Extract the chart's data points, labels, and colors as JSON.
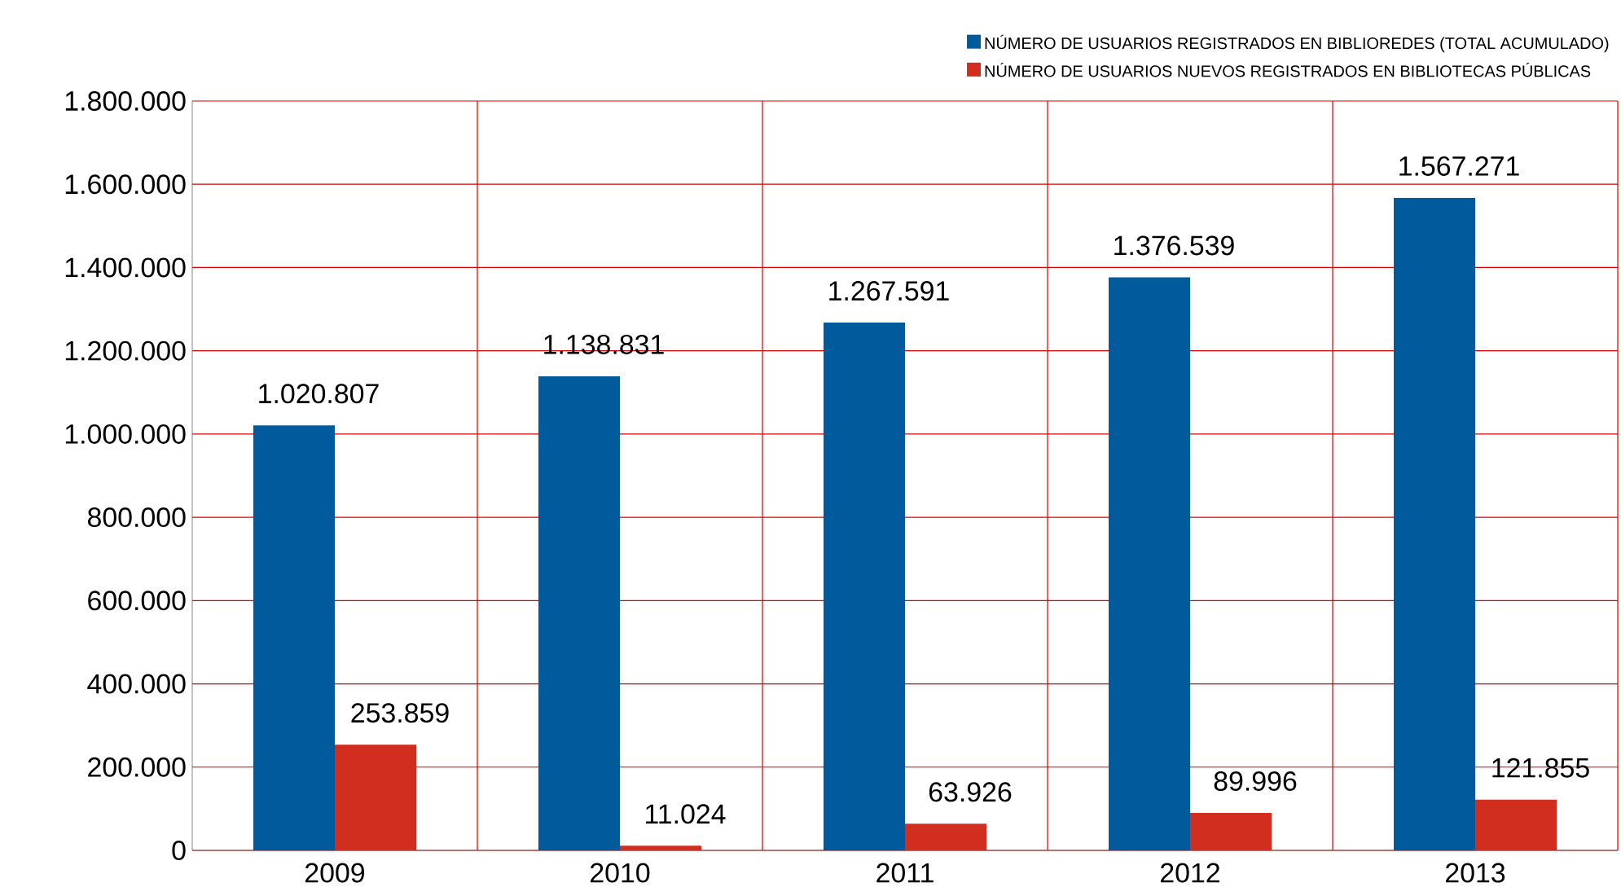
{
  "chart_data": {
    "type": "bar",
    "categories": [
      "2009",
      "2010",
      "2011",
      "2012",
      "2013"
    ],
    "series": [
      {
        "name": "NÚMERO DE USUARIOS REGISTRADOS EN BIBLIOREDES (TOTAL ACUMULADO)",
        "color": "#005a9c",
        "values": [
          1020807,
          1138831,
          1267591,
          1376539,
          1567271
        ],
        "value_labels": [
          "1.020.807",
          "1.138.831",
          "1.267.591",
          "1.376.539",
          "1.567.271"
        ]
      },
      {
        "name": "NÚMERO DE USUARIOS NUEVOS REGISTRADOS EN BIBLIOTECAS PÚBLICAS",
        "color": "#d12e1f",
        "values": [
          253859,
          11024,
          63926,
          89996,
          121855
        ],
        "value_labels": [
          "253.859",
          "11.024",
          "63.926",
          "89.996",
          "121.855"
        ]
      }
    ],
    "ylim": [
      0,
      1800000
    ],
    "yticks": [
      {
        "value": 0,
        "label": "0"
      },
      {
        "value": 200000,
        "label": "200.000"
      },
      {
        "value": 400000,
        "label": "400.000"
      },
      {
        "value": 600000,
        "label": "600.000"
      },
      {
        "value": 800000,
        "label": "800.000"
      },
      {
        "value": 1000000,
        "label": "1.000.000"
      },
      {
        "value": 1200000,
        "label": "1.200.000"
      },
      {
        "value": 1400000,
        "label": "1.400.000"
      },
      {
        "value": 1600000,
        "label": "1.600.000"
      },
      {
        "value": 1800000,
        "label": "1.800.000"
      }
    ],
    "grid": true,
    "legend": "top right"
  }
}
